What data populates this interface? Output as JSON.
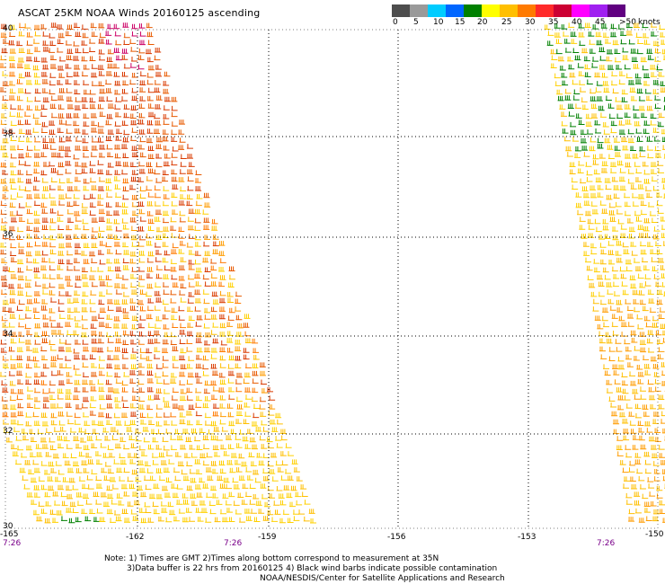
{
  "title": "ASCAT 25KM NOAA Winds 20160125 ascending",
  "legend": {
    "labels": [
      "0",
      "5",
      "10",
      "15",
      "20",
      "25",
      "30",
      "35",
      "40",
      "45",
      ">50"
    ],
    "units": "knots",
    "colors": [
      "#4d4d4d",
      "#9a9a9a",
      "#00ccff",
      "#0066ff",
      "#008000",
      "#ffff00",
      "#ffbf00",
      "#ff7a00",
      "#ff2a2a",
      "#cc0033",
      "#ff00ff",
      "#a020f0",
      "#600080"
    ]
  },
  "axes": {
    "lat_labels": [
      "40",
      "38",
      "36",
      "34",
      "32",
      "30"
    ],
    "lon_labels": [
      "-165",
      "-162",
      "-159",
      "-156",
      "-153",
      "-150"
    ]
  },
  "times": [
    "7:26",
    "7:26",
    "7:26"
  ],
  "notes": {
    "line1": "Note: 1) Times are GMT 2)Times along bottom correspond to measurement at 35N",
    "line2": "3)Data buffer is 22 hrs from 20160125 4) Black wind barbs indicate possible contamination",
    "line3": "NOAA/NESDIS/Center for Satellite Applications and Research"
  },
  "map": {
    "lat_range": [
      30,
      40
    ],
    "lon_range": [
      -165,
      -150
    ],
    "grid": "dotted"
  }
}
